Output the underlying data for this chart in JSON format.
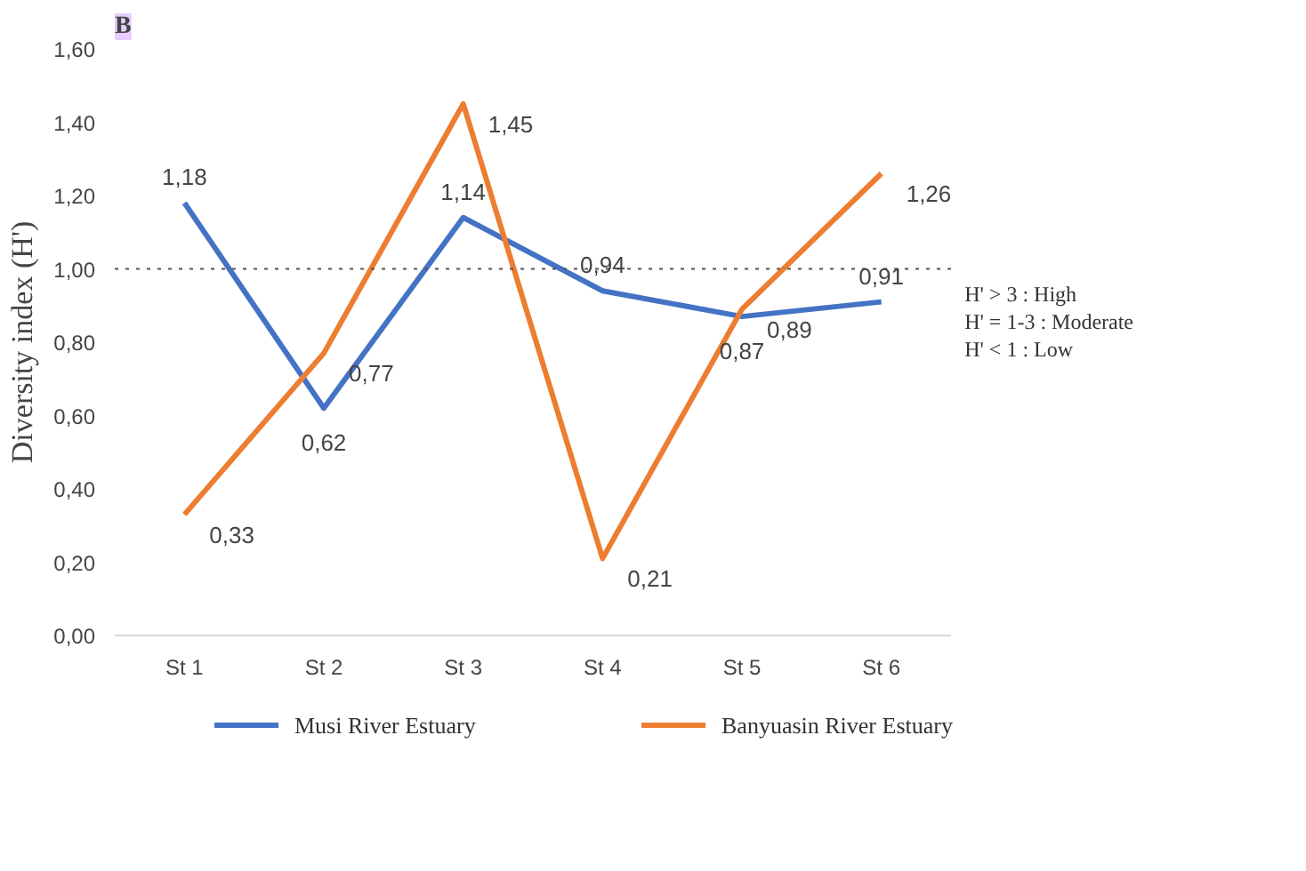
{
  "chart_data": {
    "type": "line",
    "ylabel": "Diversity index (H')",
    "categories": [
      "St 1",
      "St 2",
      "St 3",
      "St 4",
      "St 5",
      "St 6"
    ],
    "series": [
      {
        "name": "Musi River Estuary",
        "color": "#4472c4",
        "values": [
          1.18,
          0.62,
          1.14,
          0.94,
          0.87,
          0.91
        ],
        "value_labels": [
          "1,18",
          "0,62",
          "1,14",
          "0,94",
          "0,87",
          "0,91"
        ]
      },
      {
        "name": "Banyuasin River Estuary",
        "color": "#ed7d31",
        "values": [
          0.33,
          0.77,
          1.45,
          0.21,
          0.89,
          1.26
        ],
        "value_labels": [
          "0,33",
          "0,77",
          "1,45",
          "0,21",
          "0,89",
          "1,26"
        ]
      }
    ],
    "ylim": [
      0,
      1.6
    ],
    "yticks": [
      {
        "value": 0,
        "label": "0,00"
      },
      {
        "value": 0.2,
        "label": "0,20"
      },
      {
        "value": 0.4,
        "label": "0,40"
      },
      {
        "value": 0.6,
        "label": "0,60"
      },
      {
        "value": 0.8,
        "label": "0,80"
      },
      {
        "value": 1.0,
        "label": "1,00"
      },
      {
        "value": 1.2,
        "label": "1,20"
      },
      {
        "value": 1.4,
        "label": "1,40"
      },
      {
        "value": 1.6,
        "label": "1,60"
      }
    ],
    "ref_lines": [
      {
        "axis": "y",
        "value": 1.0,
        "label": null,
        "color": "#555555",
        "line_style": "dotted"
      }
    ],
    "annotations": [
      "B",
      "H' > 3   : High",
      "H' = 1-3 : Moderate",
      "H' < 1    : Low"
    ],
    "grid": false,
    "legend": "bottom",
    "marker": "none",
    "line_style": "solid"
  }
}
